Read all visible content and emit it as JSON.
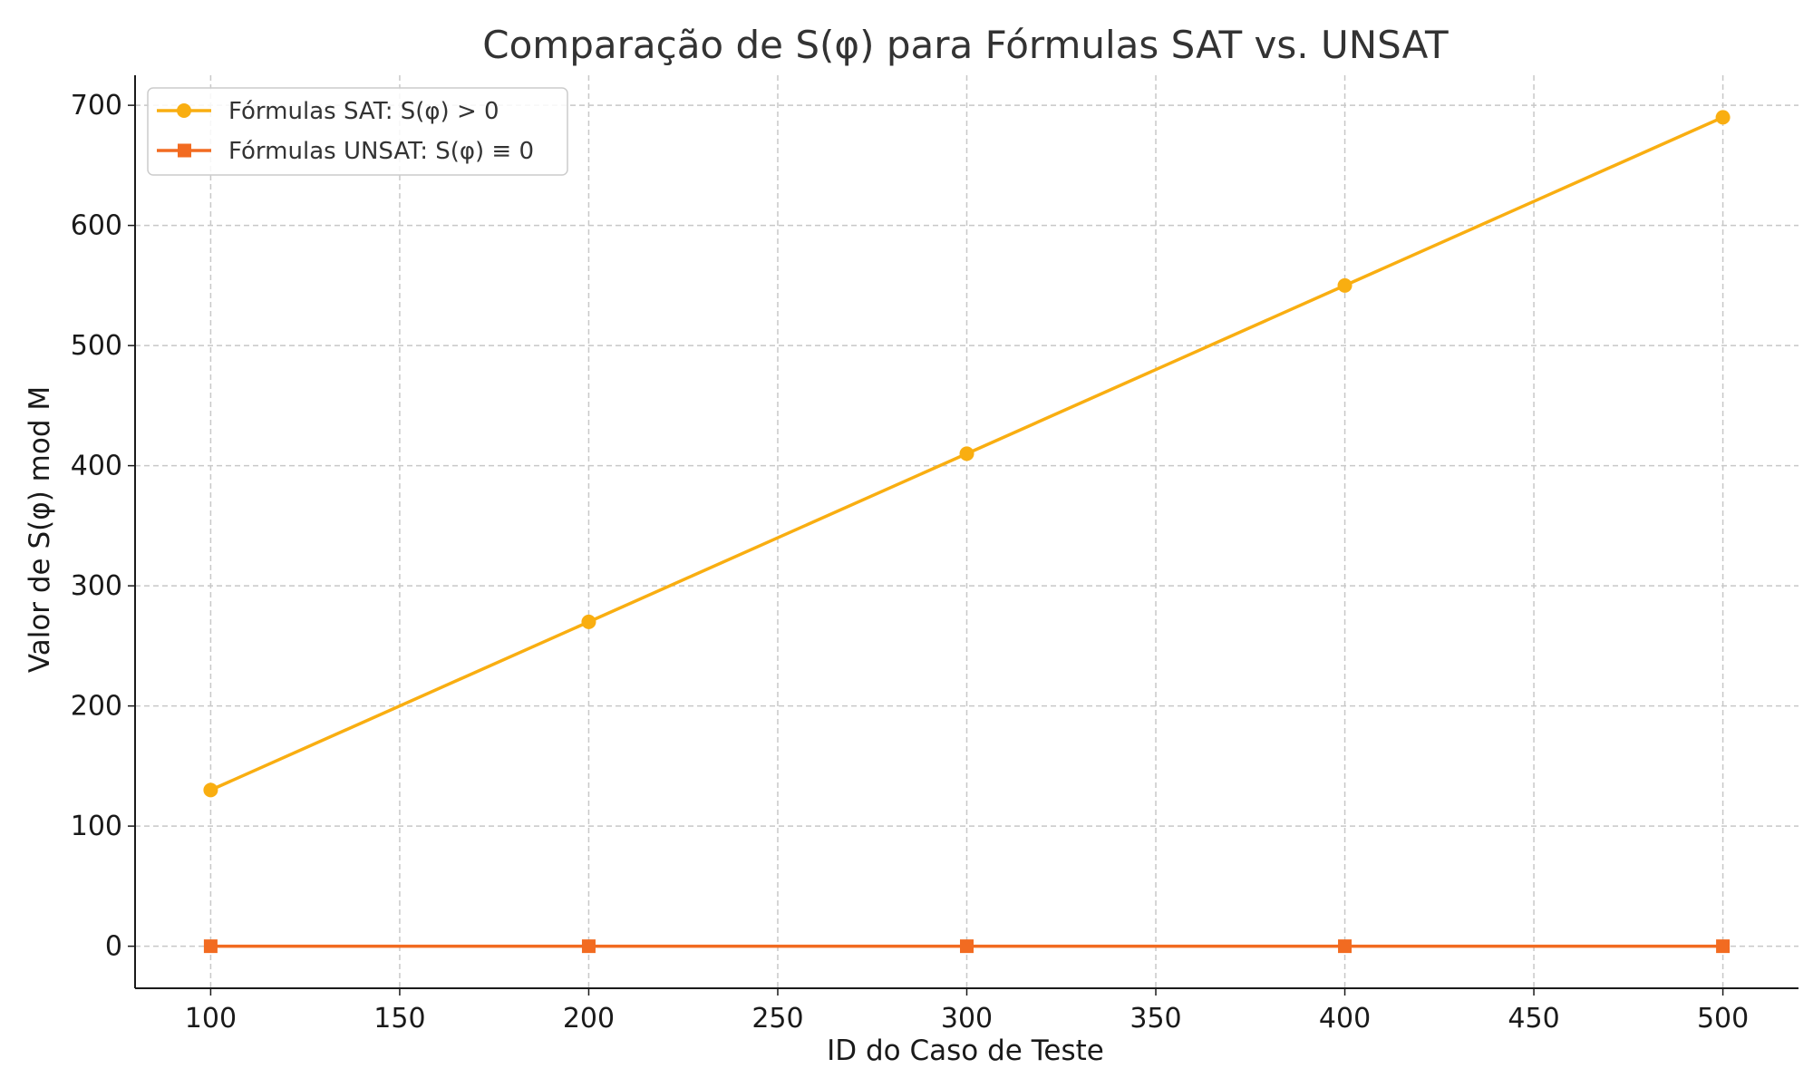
{
  "chart_data": {
    "type": "line",
    "title": "Comparação de S(φ) para Fórmulas SAT vs. UNSAT",
    "xlabel": "ID do Caso de Teste",
    "ylabel": "Valor de S(φ) mod M",
    "xlim": [
      80,
      520
    ],
    "ylim": [
      -35,
      725
    ],
    "xticks": [
      100,
      150,
      200,
      250,
      300,
      350,
      400,
      450,
      500
    ],
    "yticks": [
      0,
      100,
      200,
      300,
      400,
      500,
      600,
      700
    ],
    "x": [
      100,
      200,
      300,
      400,
      500
    ],
    "grid": true,
    "legend_position": "top-left",
    "series": [
      {
        "name": "Fórmulas SAT: S(φ) > 0",
        "values": [
          130,
          270,
          410,
          550,
          690
        ],
        "color": "#F9AE11",
        "marker": "circle"
      },
      {
        "name": "Fórmulas UNSAT: S(φ) ≡ 0",
        "values": [
          0,
          0,
          0,
          0,
          0
        ],
        "color": "#F26B21",
        "marker": "square"
      }
    ]
  }
}
